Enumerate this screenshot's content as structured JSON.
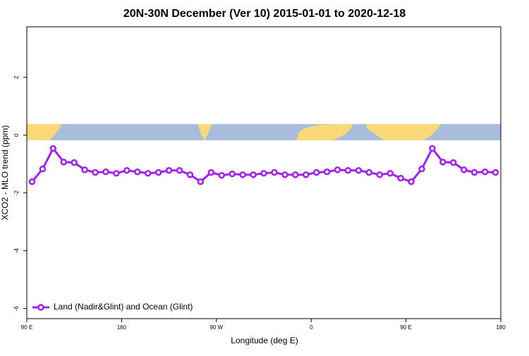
{
  "chart_data": {
    "type": "line",
    "title": "20N-30N December (Ver 10)   2015-01-01 to 2020-12-18",
    "x_label": "Longitude (deg E)",
    "y_label": "XCO2 - MLO trend (ppm)",
    "x": [
      95,
      105,
      115,
      125,
      135,
      145,
      155,
      165,
      175,
      185,
      195,
      205,
      215,
      225,
      235,
      245,
      255,
      265,
      275,
      285,
      295,
      305,
      315,
      325,
      335,
      345,
      355,
      365,
      375,
      385,
      395,
      405,
      415,
      425,
      435,
      445,
      455,
      465,
      475,
      485,
      495,
      505,
      515,
      525,
      535
    ],
    "series": [
      {
        "name": "Land (Nadir&Glint) and Ocean (Glint)",
        "color": "#a020f0",
        "values": [
          -1.61,
          -1.17,
          -0.46,
          -0.93,
          -0.95,
          -1.2,
          -1.29,
          -1.27,
          -1.32,
          -1.22,
          -1.27,
          -1.32,
          -1.29,
          -1.22,
          -1.22,
          -1.37,
          -1.61,
          -1.29,
          -1.39,
          -1.34,
          -1.37,
          -1.37,
          -1.32,
          -1.29,
          -1.37,
          -1.37,
          -1.37,
          -1.29,
          -1.27,
          -1.2,
          -1.22,
          -1.22,
          -1.29,
          -1.37,
          -1.32,
          -1.49,
          -1.61,
          -1.17,
          -0.46,
          -0.93,
          -0.95,
          -1.2,
          -1.29,
          -1.27,
          -1.29
        ]
      }
    ],
    "xlim": [
      90,
      540
    ],
    "xticks": [
      {
        "value": 90,
        "label": "90 E"
      },
      {
        "value": 180,
        "label": "180"
      },
      {
        "value": 270,
        "label": "90 W"
      },
      {
        "value": 360,
        "label": "0"
      },
      {
        "value": 450,
        "label": "90 E"
      },
      {
        "value": 540,
        "label": "180"
      }
    ],
    "ylim": [
      -6.35,
      3.75
    ],
    "yticks": [
      2,
      0,
      -2,
      -4,
      -6
    ],
    "legend": "bottom-left"
  }
}
